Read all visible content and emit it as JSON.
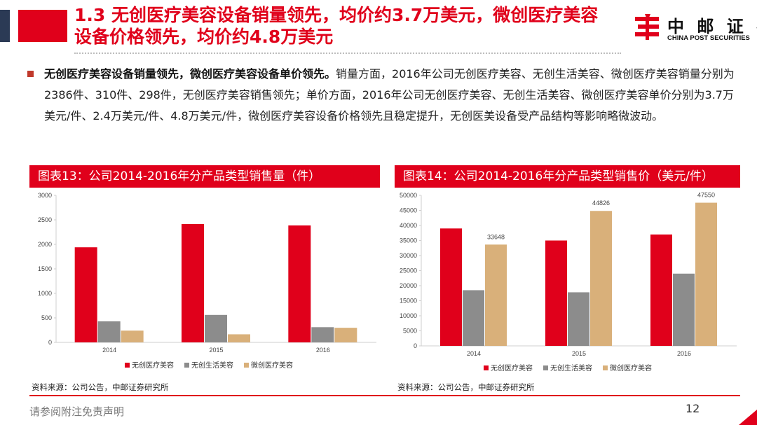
{
  "header": {
    "title_line1": "1.3 无创医疗美容设备销量领先，均价约3.7万美元，微创医疗美容",
    "title_line2": "设备价格领先，均价约4.8万美元"
  },
  "logo": {
    "name_cn": "中 邮 证 券",
    "name_en": "CHINA POST SECURITIES"
  },
  "bullet": {
    "lead": "无创医疗美容设备销量领先，微创医疗美容设备单价领先。",
    "text": "销量方面，2016年公司无创医疗美容、无创生活美容、微创医疗美容销量分别为2386件、310件、298件，无创医疗美容销售领先；单价方面，2016年公司无创医疗美容、无创生活美容、微创医疗美容单价分别为3.7万美元/件、2.4万美元/件、4.8万美元/件，微创医疗美容设备价格领先且稳定提升，无创医美设备受产品结构等影响略微波动。"
  },
  "chart_data": [
    {
      "type": "bar",
      "title": "图表13：公司2014-2016年分产品类型销售量（件）",
      "categories": [
        "2014",
        "2015",
        "2016"
      ],
      "series": [
        {
          "name": "无创医疗美容",
          "values": [
            1940,
            2415,
            2386
          ]
        },
        {
          "name": "无创生活美容",
          "values": [
            430,
            560,
            310
          ]
        },
        {
          "name": "微创医疗美容",
          "values": [
            240,
            165,
            298
          ]
        }
      ],
      "ylim": [
        0,
        3000
      ],
      "yticks": [
        0,
        500,
        1000,
        1500,
        2000,
        2500,
        3000
      ],
      "legend": "bottom",
      "grid": false
    },
    {
      "type": "bar",
      "title": "图表14：公司2014-2016年分产品类型销售价（美元/件）",
      "categories": [
        "2014",
        "2015",
        "2016"
      ],
      "series": [
        {
          "name": "无创医疗美容",
          "values": [
            39000,
            35000,
            37000
          ]
        },
        {
          "name": "无创生活美容",
          "values": [
            18500,
            17800,
            24000
          ]
        },
        {
          "name": "微创医疗美容",
          "values": [
            33648,
            44826,
            47550
          ]
        }
      ],
      "data_labels_series": 2,
      "ylim": [
        0,
        50000
      ],
      "yticks": [
        0,
        5000,
        10000,
        15000,
        20000,
        25000,
        30000,
        35000,
        40000,
        45000,
        50000
      ],
      "legend": "bottom",
      "grid": false
    }
  ],
  "colors": {
    "brand_red": "#e0001b",
    "series": [
      "#e0001b",
      "#8c8c8c",
      "#d9b07a"
    ]
  },
  "footer": {
    "source_left": "资料来源：公司公告，中邮证券研究所",
    "source_right": "资料来源：公司公告，中邮证券研究所",
    "disclaimer": "请参阅附注免责声明",
    "page_number": "12"
  }
}
